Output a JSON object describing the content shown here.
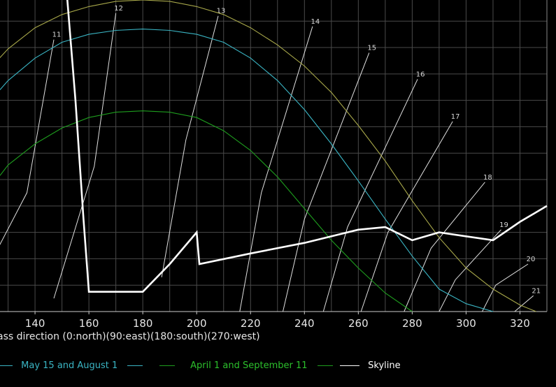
{
  "chart_data": {
    "type": "line",
    "xlabel": "ass direction (0:north)(90:east)(180:south)(270:west)",
    "xlim": [
      127,
      330
    ],
    "ylim": [
      0,
      11.8
    ],
    "x_ticks": [
      140,
      160,
      180,
      200,
      220,
      240,
      260,
      280,
      300,
      320
    ],
    "grid": true,
    "legend_position": "bottom",
    "series": [
      {
        "name": "",
        "color": "#a8a84a",
        "x": [
          125,
          130,
          140,
          150,
          160,
          170,
          180,
          190,
          200,
          210,
          220,
          230,
          240,
          250,
          260,
          270,
          280,
          290,
          300,
          310,
          320,
          326
        ],
        "y": [
          9.4,
          9.95,
          10.75,
          11.25,
          11.55,
          11.75,
          11.8,
          11.75,
          11.55,
          11.25,
          10.75,
          10.1,
          9.3,
          8.3,
          7.05,
          5.7,
          4.2,
          2.8,
          1.65,
          0.85,
          0.25,
          0.0
        ]
      },
      {
        "name": "May 15 and August 1",
        "color": "#3ab5c4",
        "x": [
          127,
          130,
          140,
          150,
          160,
          170,
          180,
          190,
          200,
          210,
          220,
          230,
          240,
          250,
          260,
          270,
          280,
          290,
          300,
          310
        ],
        "y": [
          8.4,
          8.75,
          9.6,
          10.2,
          10.5,
          10.65,
          10.7,
          10.65,
          10.5,
          10.2,
          9.6,
          8.75,
          7.65,
          6.35,
          4.95,
          3.5,
          2.1,
          0.85,
          0.3,
          0.0
        ]
      },
      {
        "name": "April 1 and September 11",
        "color": "#1e9e1e",
        "x": [
          127,
          130,
          140,
          150,
          160,
          170,
          180,
          190,
          200,
          210,
          220,
          230,
          240,
          250,
          260,
          270,
          280
        ],
        "y": [
          5.15,
          5.55,
          6.35,
          6.95,
          7.35,
          7.55,
          7.6,
          7.55,
          7.35,
          6.85,
          6.1,
          5.1,
          3.9,
          2.7,
          1.65,
          0.7,
          0.0
        ]
      },
      {
        "name": "Skyline",
        "color": "#ffffff",
        "x": [
          148,
          152,
          155,
          158,
          160,
          170,
          180,
          190,
          200,
          201,
          220,
          240,
          260,
          270,
          280,
          290,
          300,
          310,
          320,
          330
        ],
        "y": [
          12.5,
          11.8,
          8.0,
          3.5,
          0.75,
          0.75,
          0.75,
          1.8,
          3.0,
          1.8,
          2.2,
          2.6,
          3.1,
          3.2,
          2.7,
          3.0,
          2.85,
          2.7,
          3.4,
          4.0
        ]
      }
    ],
    "hour_lines": [
      {
        "label": "11",
        "x": [
          114,
          137,
          147
        ],
        "y": [
          0.0,
          4.5,
          10.3
        ]
      },
      {
        "label": "12",
        "x": [
          147,
          162,
          170
        ],
        "y": [
          0.5,
          5.5,
          11.3
        ]
      },
      {
        "label": "13",
        "x": [
          187,
          196,
          208
        ],
        "y": [
          1.3,
          6.5,
          11.2
        ]
      },
      {
        "label": "14",
        "x": [
          216,
          224,
          243
        ],
        "y": [
          0.0,
          4.5,
          10.8
        ]
      },
      {
        "label": "15",
        "x": [
          232,
          240,
          264
        ],
        "y": [
          0.0,
          3.5,
          9.8
        ]
      },
      {
        "label": "16",
        "x": [
          247,
          256,
          282
        ],
        "y": [
          0.0,
          3.2,
          8.8
        ]
      },
      {
        "label": "17",
        "x": [
          261,
          271,
          295
        ],
        "y": [
          0.0,
          3.0,
          7.2
        ]
      },
      {
        "label": "18",
        "x": [
          277,
          287,
          307
        ],
        "y": [
          0.0,
          2.4,
          4.9
        ]
      },
      {
        "label": "19",
        "x": [
          290,
          296,
          313
        ],
        "y": [
          0.0,
          1.2,
          3.1
        ]
      },
      {
        "label": "20",
        "x": [
          306,
          311,
          323
        ],
        "y": [
          0.0,
          1.0,
          1.8
        ]
      },
      {
        "label": "21",
        "x": [
          318,
          325
        ],
        "y": [
          0.0,
          0.6
        ]
      }
    ]
  },
  "legend": {
    "entries": [
      {
        "label": "May 15 and August 1",
        "color": "#3ab5c4"
      },
      {
        "label": "April 1 and September 11",
        "color": "#1e9e1e"
      },
      {
        "label": "Skyline",
        "color": "#ffffff"
      }
    ]
  }
}
